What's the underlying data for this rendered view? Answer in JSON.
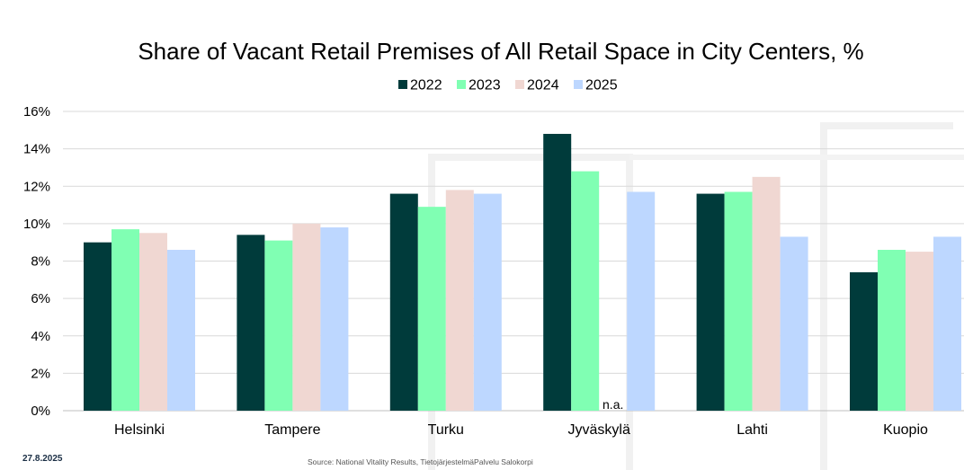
{
  "chart_data": {
    "type": "bar",
    "title": "Share of Vacant Retail Premises of All Retail Space in City Centers, %",
    "xlabel": "",
    "ylabel": "",
    "categories": [
      "Helsinki",
      "Tampere",
      "Turku",
      "Jyväskylä",
      "Lahti",
      "Kuopio"
    ],
    "series": [
      {
        "name": "2022",
        "color": "#003b3b",
        "values": [
          9.0,
          9.4,
          11.6,
          14.8,
          11.6,
          7.4
        ]
      },
      {
        "name": "2023",
        "color": "#80ffb3",
        "values": [
          9.7,
          9.1,
          10.9,
          12.8,
          11.7,
          8.6
        ]
      },
      {
        "name": "2024",
        "color": "#f0d7d2",
        "values": [
          9.5,
          10.0,
          11.8,
          null,
          12.5,
          8.5
        ]
      },
      {
        "name": "2025",
        "color": "#bdd7ff",
        "values": [
          8.6,
          9.8,
          11.6,
          11.7,
          9.3,
          9.3
        ]
      }
    ],
    "ylim": [
      0,
      16
    ],
    "yticks": [
      "0%",
      "2%",
      "4%",
      "6%",
      "8%",
      "10%",
      "12%",
      "14%",
      "16%"
    ],
    "missing_label": "n.a.",
    "grid": true,
    "legend": "top-center"
  },
  "footer": {
    "date": "27.8.2025",
    "source": "Source: National Vitality Results, TietojärjestelmäPalvelu Salokorpi"
  }
}
